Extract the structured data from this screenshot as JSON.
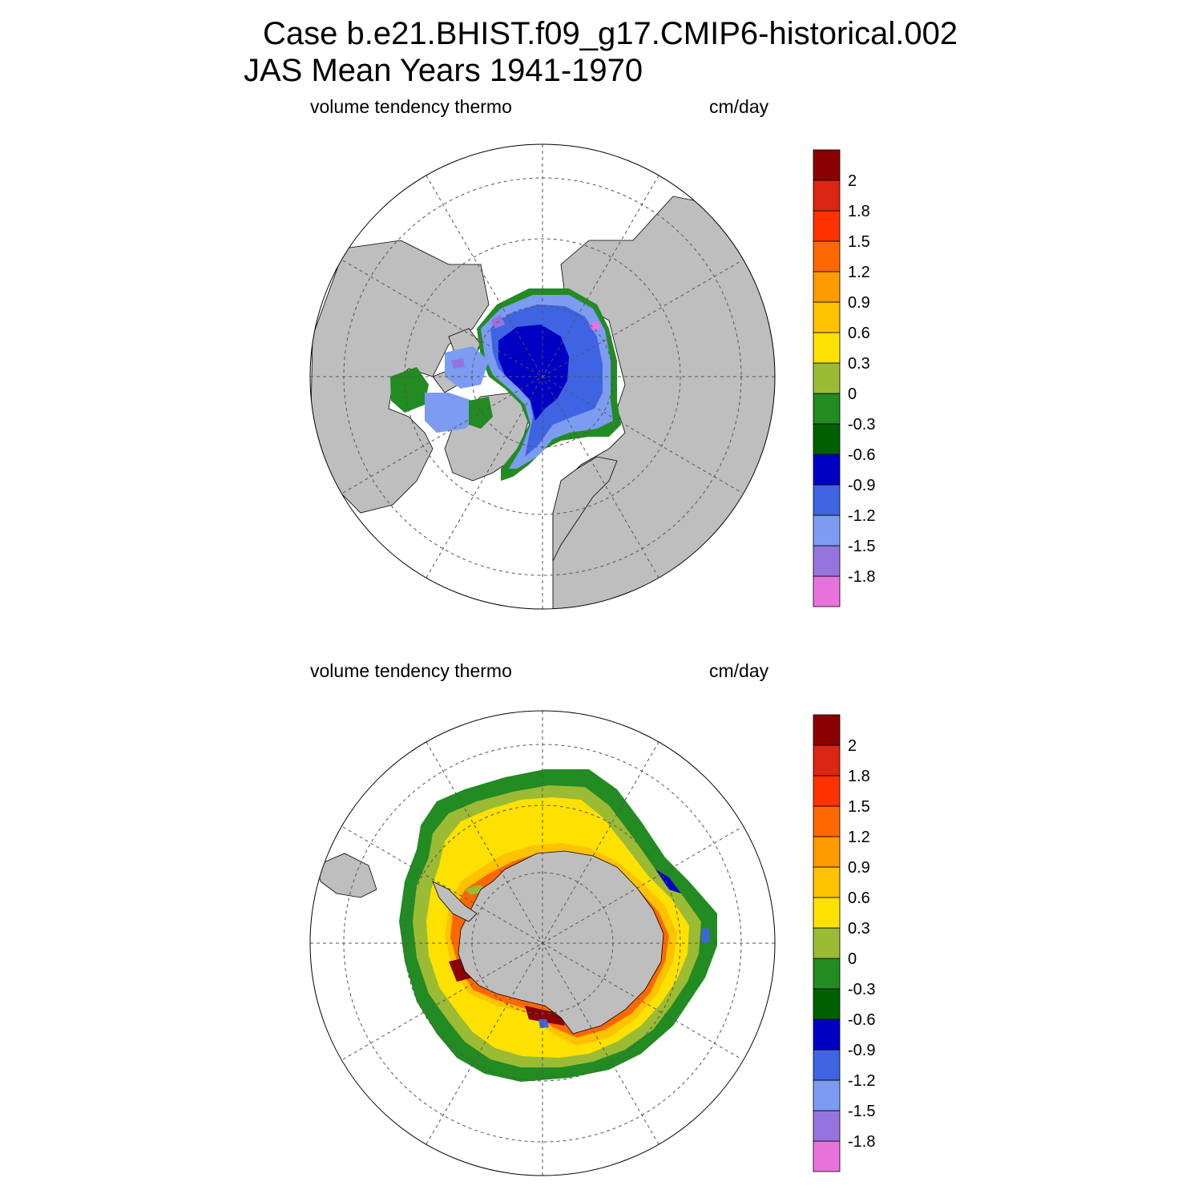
{
  "title_line1": "Case b.e21.BHIST.f09_g17.CMIP6-historical.002",
  "title_line2": "JAS Mean   Years 1941-1970",
  "panels": [
    {
      "hemisphere": "north",
      "left_label": "volume tendency thermo",
      "right_label": "cm/day"
    },
    {
      "hemisphere": "south",
      "left_label": "volume tendency thermo",
      "right_label": "cm/day"
    }
  ],
  "colorbar": {
    "colors": [
      "#e873dc",
      "#9575dd",
      "#7b9cf1",
      "#3e64e4",
      "#0000c4",
      "#006000",
      "#228b22",
      "#9bbb35",
      "#ffe100",
      "#ffc200",
      "#ff9a00",
      "#ff6800",
      "#ff3200",
      "#db2613",
      "#8b0000"
    ],
    "labels": [
      "-1.8",
      "-1.5",
      "-1.2",
      "-0.9",
      "-0.6",
      "-0.3",
      "0",
      "0.3",
      "0.6",
      "0.9",
      "1.2",
      "1.5",
      "1.8",
      "2"
    ]
  },
  "map_colors": {
    "land": "#bebebe",
    "ocean": "#ffffff",
    "grid": "#555555"
  }
}
